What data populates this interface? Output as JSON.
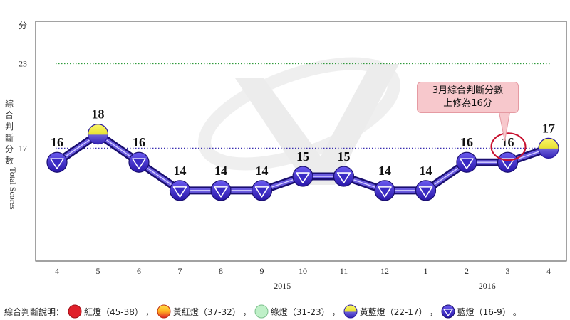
{
  "chart_data": {
    "type": "line",
    "categories": [
      "4",
      "5",
      "6",
      "7",
      "8",
      "9",
      "10",
      "11",
      "12",
      "1",
      "2",
      "3",
      "4"
    ],
    "values": [
      16,
      18,
      16,
      14,
      14,
      14,
      15,
      15,
      14,
      14,
      16,
      16,
      17
    ],
    "data_labels": [
      "16",
      "18",
      "16",
      "14",
      "14",
      "14",
      "15",
      "15",
      "14",
      "14",
      "16",
      "16",
      "17"
    ],
    "year_labels": [
      {
        "text": "2015",
        "at_index": 5.5
      },
      {
        "text": "2016",
        "at_index": 10.5
      }
    ],
    "y_ticks": [
      {
        "value": 23,
        "label": "23"
      },
      {
        "value": 17,
        "label": "17"
      }
    ],
    "y_unit": "分",
    "ylabel_cjk": [
      "綜",
      "合",
      "判",
      "斷",
      "分",
      "數"
    ],
    "ylabel_en": "Total Scores",
    "ylim": [
      9,
      26
    ],
    "reference_lines": [
      {
        "value": 23,
        "color": "#2e9a3a",
        "style": "dotted"
      },
      {
        "value": 17,
        "color": "#3a2fb0",
        "style": "dotted"
      }
    ],
    "marker_kind": [
      "blue",
      "yellow-blue",
      "blue",
      "blue",
      "blue",
      "blue",
      "blue",
      "blue",
      "blue",
      "blue",
      "blue",
      "blue",
      "yellow-blue"
    ],
    "line_color": "#2a1aa0",
    "annotation": {
      "lines": [
        "3月綜合判斷分數",
        "上修為16分"
      ],
      "target_index": 11,
      "circle_color": "#c8102e",
      "fill": "#f7c8cc"
    }
  },
  "legend": {
    "lead": "綜合判斷說明：",
    "items": [
      {
        "label": "紅燈（45-38）",
        "kind": "red"
      },
      {
        "label": "黃紅燈（37-32）",
        "kind": "yellow-red"
      },
      {
        "label": "綠燈（31-23）",
        "kind": "green"
      },
      {
        "label": "黃藍燈（22-17）",
        "kind": "yellow-blue"
      },
      {
        "label": "藍燈（16-9）",
        "kind": "blue"
      }
    ],
    "separator": "，",
    "end": "。"
  },
  "colors": {
    "blue_light": "#4b3bd6",
    "blue_dark": "#2a1aa0",
    "yellow": "#f4ec2a",
    "red": "#e0202a",
    "green": "#bff0c8"
  }
}
